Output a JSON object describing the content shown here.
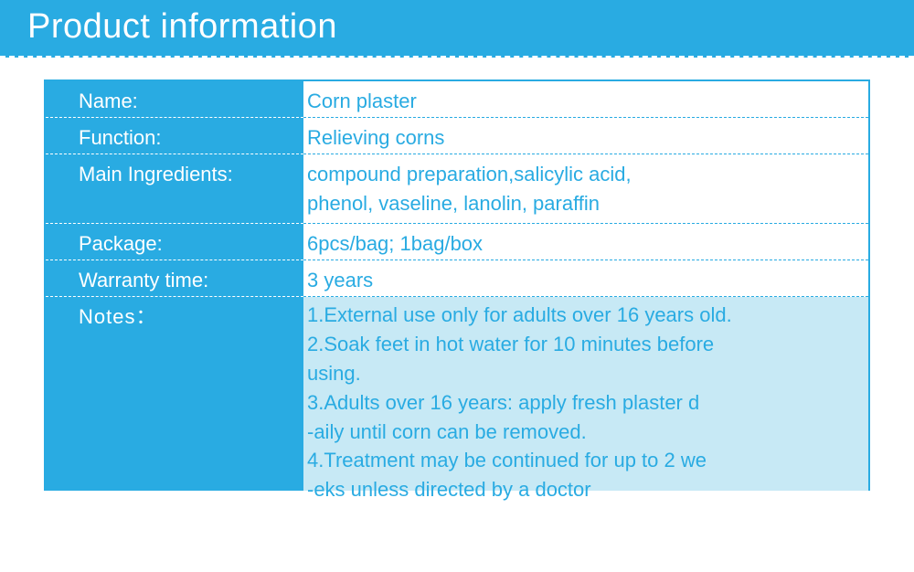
{
  "header": {
    "title": "Product information"
  },
  "colors": {
    "brand": "#29abe2",
    "notes_bg": "#c7e9f5",
    "white": "#ffffff"
  },
  "rows": {
    "name": {
      "label": "Name:",
      "value": "Corn plaster"
    },
    "function": {
      "label": "Function:",
      "value": "Relieving corns"
    },
    "ingredients": {
      "label": "Main Ingredients:",
      "value": "compound preparation,salicylic acid,\n phenol,  vaseline, lanolin, paraffin"
    },
    "package": {
      "label": "Package:",
      "value": "6pcs/bag; 1bag/box"
    },
    "warranty": {
      "label": "Warranty time:",
      "value": "3 years"
    },
    "notes": {
      "label": "Notes：",
      "value": "1.External use only for adults over 16 years old.\n2.Soak feet in hot water for 10 minutes before\n using.\n3.Adults over 16 years: apply fresh plaster d\n-aily until corn can be removed.\n4.Treatment may be continued for up to 2 we\n-eks unless directed by a doctor"
    }
  }
}
